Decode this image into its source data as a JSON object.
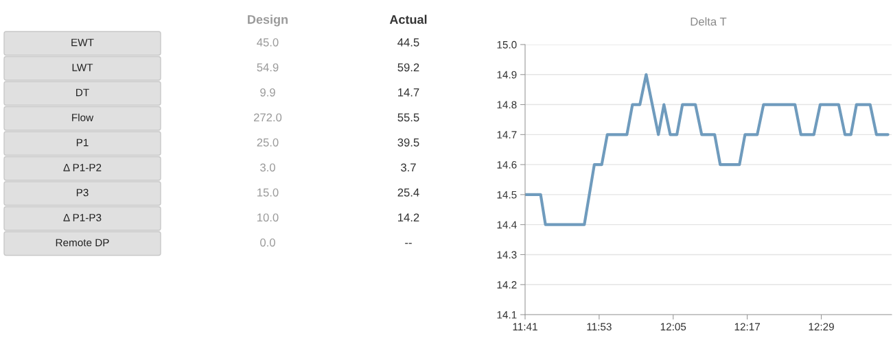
{
  "chart_data": [
    {
      "type": "other",
      "categories": [
        "EWT",
        "LWT",
        "DT",
        "Flow",
        "P1",
        "Δ P1-P2",
        "P3",
        "Δ P1-P3",
        "Remote DP"
      ],
      "series": [
        {
          "name": "Design",
          "color": "#9a9a9a",
          "values": [
            45.0,
            54.9,
            9.9,
            272.0,
            25.0,
            3.0,
            15.0,
            10.0,
            0.0
          ],
          "value_labels": [
            "45.0",
            "54.9",
            "9.9",
            "272.0",
            "25.0",
            "3.0",
            "15.0",
            "10.0",
            "0.0"
          ]
        },
        {
          "name": "Actual",
          "color": "#333333",
          "values": [
            44.5,
            59.2,
            14.7,
            55.5,
            39.5,
            3.7,
            25.4,
            14.2,
            null
          ],
          "value_labels": [
            "44.5",
            "59.2",
            "14.7",
            "55.5",
            "39.5",
            "3.7",
            "25.4",
            "14.2",
            "--"
          ]
        }
      ]
    },
    {
      "type": "line",
      "title": "Delta T",
      "x": [
        11.683,
        11.725,
        11.738,
        11.843,
        11.87,
        11.89,
        11.905,
        11.958,
        11.973,
        11.993,
        12.01,
        12.043,
        12.058,
        12.075,
        12.093,
        12.108,
        12.143,
        12.16,
        12.195,
        12.21,
        12.262,
        12.277,
        12.31,
        12.327,
        12.412,
        12.428,
        12.463,
        12.48,
        12.53,
        12.547,
        12.563,
        12.578,
        12.615,
        12.632,
        12.663
      ],
      "series": [
        {
          "color": "#6f9bbd",
          "values": [
            14.5,
            14.5,
            14.4,
            14.4,
            14.6,
            14.6,
            14.7,
            14.7,
            14.8,
            14.8,
            14.9,
            14.7,
            14.8,
            14.7,
            14.7,
            14.8,
            14.8,
            14.7,
            14.7,
            14.6,
            14.6,
            14.7,
            14.7,
            14.8,
            14.8,
            14.7,
            14.7,
            14.8,
            14.8,
            14.7,
            14.7,
            14.8,
            14.8,
            14.7,
            14.7
          ]
        }
      ],
      "xlim": [
        11.683,
        12.673
      ],
      "xticks": [
        {
          "value": 11.683,
          "label": "11:41"
        },
        {
          "value": 11.883,
          "label": "11:53"
        },
        {
          "value": 12.083,
          "label": "12:05"
        },
        {
          "value": 12.283,
          "label": "12:17"
        },
        {
          "value": 12.483,
          "label": "12:29"
        }
      ],
      "ylim": [
        14.1,
        15.0
      ],
      "yticks": [
        {
          "value": 14.1,
          "label": "14.1"
        },
        {
          "value": 14.2,
          "label": "14.2"
        },
        {
          "value": 14.3,
          "label": "14.3"
        },
        {
          "value": 14.4,
          "label": "14.4"
        },
        {
          "value": 14.5,
          "label": "14.5"
        },
        {
          "value": 14.6,
          "label": "14.6"
        },
        {
          "value": 14.7,
          "label": "14.7"
        },
        {
          "value": 14.8,
          "label": "14.8"
        },
        {
          "value": 14.9,
          "label": "14.9"
        },
        {
          "value": 15.0,
          "label": "15.0"
        }
      ],
      "grid": "y",
      "legend": false,
      "marker": "none",
      "line_style": "solid"
    }
  ]
}
